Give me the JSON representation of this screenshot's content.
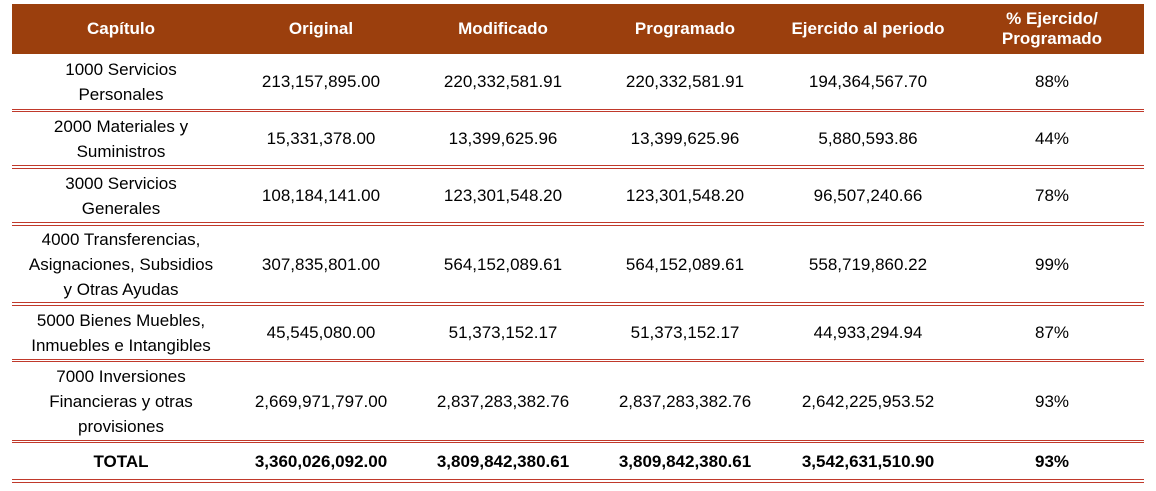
{
  "header": {
    "capitulo": "Capítulo",
    "original": "Original",
    "modificado": "Modificado",
    "programado": "Programado",
    "ejercido": "Ejercido al periodo",
    "pct_line1": "% Ejercido/",
    "pct_line2": "Programado"
  },
  "rows": [
    {
      "capitulo_l1": "1000 Servicios",
      "capitulo_l2": "Personales",
      "capitulo_l3": "",
      "original": "213,157,895.00",
      "modificado": "220,332,581.91",
      "programado": "220,332,581.91",
      "ejercido": "194,364,567.70",
      "pct": "88%"
    },
    {
      "capitulo_l1": "2000 Materiales y",
      "capitulo_l2": "Suministros",
      "capitulo_l3": "",
      "original": "15,331,378.00",
      "modificado": "13,399,625.96",
      "programado": "13,399,625.96",
      "ejercido": "5,880,593.86",
      "pct": "44%"
    },
    {
      "capitulo_l1": "3000 Servicios",
      "capitulo_l2": "Generales",
      "capitulo_l3": "",
      "original": "108,184,141.00",
      "modificado": "123,301,548.20",
      "programado": "123,301,548.20",
      "ejercido": "96,507,240.66",
      "pct": "78%"
    },
    {
      "capitulo_l1": "4000 Transferencias,",
      "capitulo_l2": "Asignaciones, Subsidios",
      "capitulo_l3": "y Otras Ayudas",
      "original": "307,835,801.00",
      "modificado": "564,152,089.61",
      "programado": "564,152,089.61",
      "ejercido": "558,719,860.22",
      "pct": "99%"
    },
    {
      "capitulo_l1": "5000 Bienes Muebles,",
      "capitulo_l2": "Inmuebles e Intangibles",
      "capitulo_l3": "",
      "original": "45,545,080.00",
      "modificado": "51,373,152.17",
      "programado": "51,373,152.17",
      "ejercido": "44,933,294.94",
      "pct": "87%"
    },
    {
      "capitulo_l1": "7000 Inversiones",
      "capitulo_l2": "Financieras y otras",
      "capitulo_l3": "provisiones",
      "original": "2,669,971,797.00",
      "modificado": "2,837,283,382.76",
      "programado": "2,837,283,382.76",
      "ejercido": "2,642,225,953.52",
      "pct": "93%"
    }
  ],
  "total": {
    "label": "TOTAL",
    "original": "3,360,026,092.00",
    "modificado": "3,809,842,380.61",
    "programado": "3,809,842,380.61",
    "ejercido": "3,542,631,510.90",
    "pct": "93%"
  },
  "colors": {
    "header_bg": "#9b3f0d",
    "header_text": "#ffffff",
    "rule": "#c0392b"
  }
}
